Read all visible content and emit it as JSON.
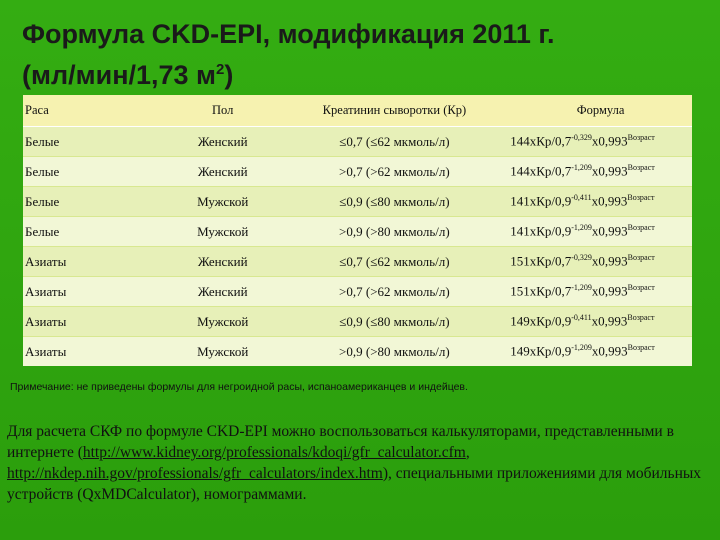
{
  "title": {
    "line1": "Формула  CKD-EPI, модификация 2011 г.",
    "line2_pre": "(мл/мин/1,73 м",
    "line2_sup": "2",
    "line2_post": ")"
  },
  "table": {
    "headers": [
      "Раса",
      "Пол",
      "Креатинин сыворотки (Кр)",
      "Формула"
    ],
    "rows": [
      {
        "race": "Белые",
        "sex": "Женский",
        "creat": "≤0,7 (≤62 мкмоль/л)",
        "f_pre": "144xКр/0,7",
        "f_exp": "-0,329",
        "f_mid": "x0,993",
        "f_exp2": "Возраст"
      },
      {
        "race": "Белые",
        "sex": "Женский",
        "creat": ">0,7 (>62 мкмоль/л)",
        "f_pre": "144xКр/0,7",
        "f_exp": "-1,209",
        "f_mid": "x0,993",
        "f_exp2": "Возраст"
      },
      {
        "race": "Белые",
        "sex": "Мужской",
        "creat": "≤0,9 (≤80 мкмоль/л)",
        "f_pre": "141xКр/0,9",
        "f_exp": "-0,411",
        "f_mid": "x0,993",
        "f_exp2": "Возраст"
      },
      {
        "race": "Белые",
        "sex": "Мужской",
        "creat": ">0,9 (>80 мкмоль/л)",
        "f_pre": "141xКр/0,9",
        "f_exp": "-1,209",
        "f_mid": "x0,993",
        "f_exp2": "Возраст"
      },
      {
        "race": "Азиаты",
        "sex": "Женский",
        "creat": "≤0,7 (≤62 мкмоль/л)",
        "f_pre": "151xКр/0,7",
        "f_exp": "-0,329",
        "f_mid": "x0,993",
        "f_exp2": "Возраст"
      },
      {
        "race": "Азиаты",
        "sex": "Женский",
        "creat": ">0,7 (>62 мкмоль/л)",
        "f_pre": "151xКр/0,7",
        "f_exp": "-1,209",
        "f_mid": "x0,993",
        "f_exp2": "Возраст"
      },
      {
        "race": "Азиаты",
        "sex": "Мужской",
        "creat": "≤0,9 (≤80 мкмоль/л)",
        "f_pre": "149xКр/0,9",
        "f_exp": "-0,411",
        "f_mid": "x0,993",
        "f_exp2": "Возраст"
      },
      {
        "race": "Азиаты",
        "sex": "Мужской",
        "creat": ">0,9 (>80 мкмоль/л)",
        "f_pre": "149xКр/0,9",
        "f_exp": "-1,209",
        "f_mid": "x0,993",
        "f_exp2": "Возраст"
      }
    ]
  },
  "note": "Примечание: не приведены формулы для негроидной расы, испаноамериканцев и индейцев.",
  "paragraph": {
    "text1": "Для расчета СКФ по формуле CKD-EPI можно воспользоваться калькуляторами, представленными в интернете (",
    "link1": "http://www.kidney.org/professionals/kdoqi/gfr_calculator.cfm",
    "text2": ", ",
    "link2": "http://nkdep.nih.gov/professionals/gfr_calculators/index.htm",
    "text3": "), специальными приложениями для мобильных устройств (QxMDCalculator), номограммами."
  }
}
